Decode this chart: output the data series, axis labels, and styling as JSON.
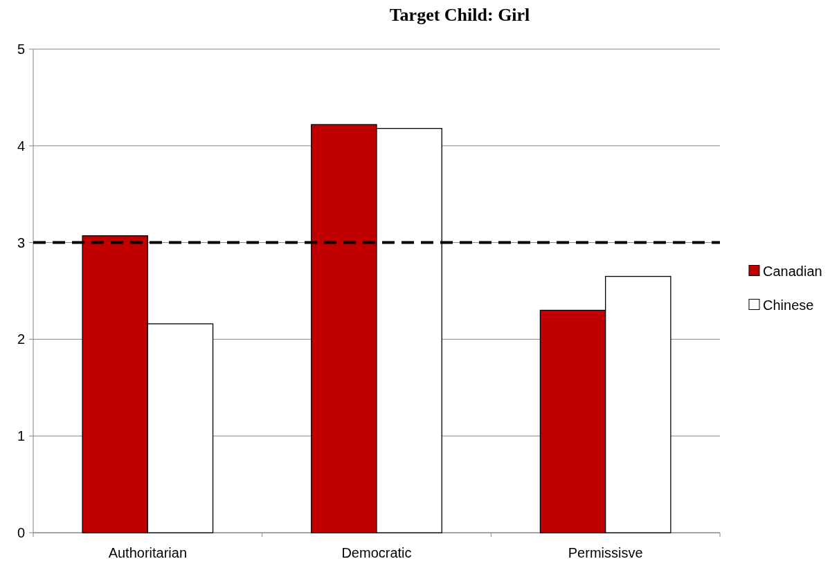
{
  "chart_data": {
    "type": "bar",
    "title": "Target Child: Girl",
    "categories": [
      "Authoritarian",
      "Democratic",
      "Permissisve"
    ],
    "series": [
      {
        "name": "Canadian",
        "color": "#c00000",
        "values": [
          3.07,
          4.22,
          2.3
        ]
      },
      {
        "name": "Chinese",
        "color": "#ffffff",
        "values": [
          2.16,
          4.18,
          2.65
        ]
      }
    ],
    "ylim": [
      0,
      5
    ],
    "yticks": [
      0,
      1,
      2,
      3,
      4,
      5
    ],
    "grid": "y",
    "legend": "right",
    "ref_lines": [
      {
        "axis": "y",
        "value": 3,
        "color": "#000000",
        "line_style": "dashed"
      }
    ]
  }
}
